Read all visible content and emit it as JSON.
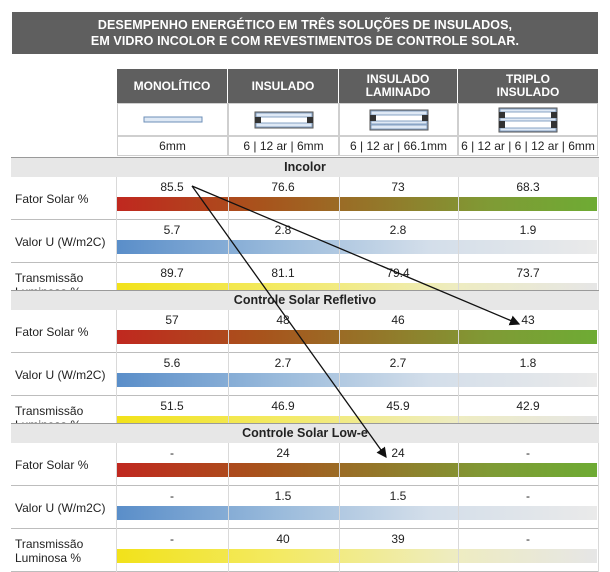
{
  "title": {
    "line1": "DESEMPENHO ENERGÉTICO EM TRÊS SOLUÇÕES DE INSULADOS,",
    "line2": "EM VIDRO INCOLOR E COM REVESTIMENTOS DE CONTROLE SOLAR."
  },
  "columns": [
    {
      "label": "MONOLÍTICO",
      "spec": "6mm",
      "icon": "single-pane-glass-icon"
    },
    {
      "label": "INSULADO",
      "spec": "6 | 12 ar | 6mm",
      "icon": "double-pane-glass-icon"
    },
    {
      "label": "INSULADO\nLAMINADO",
      "spec": "6 | 12 ar | 66.1mm",
      "icon": "laminated-double-glass-icon"
    },
    {
      "label": "TRIPLO\nINSULADO",
      "spec": "6 | 12 ar | 6 | 12 ar | 6mm",
      "icon": "triple-pane-glass-icon"
    }
  ],
  "colors": {
    "header_bg": "#5f5f5f",
    "section_bg": "#e7e7e7",
    "arrow": "#111111"
  },
  "chart_data": {
    "type": "table",
    "title": "DESEMPENHO ENERGÉTICO EM TRÊS SOLUÇÕES DE INSULADOS, EM VIDRO INCOLOR E COM REVESTIMENTOS DE CONTROLE SOLAR.",
    "columns": [
      "MONOLÍTICO",
      "INSULADO",
      "INSULADO LAMINADO",
      "TRIPLO INSULADO"
    ],
    "sections": [
      {
        "name": "Incolor",
        "rows": [
          {
            "label": "Fator Solar %",
            "values": [
              "85.5",
              "76.6",
              "73",
              "68.3"
            ],
            "gradient": "red-green"
          },
          {
            "label": "Valor U (W/m2C)",
            "values": [
              "5.7",
              "2.8",
              "2.8",
              "1.9"
            ],
            "gradient": "blue-grey"
          },
          {
            "label": "Transmissão\nLuminosa %",
            "values": [
              "89.7",
              "81.1",
              "79.4",
              "73.7"
            ],
            "gradient": "yellow-grey"
          }
        ]
      },
      {
        "name": "Controle Solar Refletivo",
        "rows": [
          {
            "label": "Fator Solar %",
            "values": [
              "57",
              "48",
              "46",
              "43"
            ],
            "gradient": "red-green"
          },
          {
            "label": "Valor U (W/m2C)",
            "values": [
              "5.6",
              "2.7",
              "2.7",
              "1.8"
            ],
            "gradient": "blue-grey"
          },
          {
            "label": "Transmissão\nLuminosa %",
            "values": [
              "51.5",
              "46.9",
              "45.9",
              "42.9"
            ],
            "gradient": "yellow-grey"
          }
        ]
      },
      {
        "name": "Controle Solar Low-e",
        "rows": [
          {
            "label": "Fator Solar %",
            "values": [
              "-",
              "24",
              "24",
              "-"
            ],
            "gradient": "red-green"
          },
          {
            "label": "Valor U (W/m2C)",
            "values": [
              "-",
              "1.5",
              "1.5",
              "-"
            ],
            "gradient": "blue-grey"
          },
          {
            "label": "Transmissão\nLuminosa %",
            "values": [
              "-",
              "40",
              "39",
              "-"
            ],
            "gradient": "yellow-grey"
          }
        ]
      }
    ],
    "arrows": [
      {
        "from": "Incolor / Fator Solar % / MONOLÍTICO",
        "to": "Controle Solar Refletivo / Fator Solar % / TRIPLO INSULADO"
      },
      {
        "from": "Incolor / Fator Solar % / MONOLÍTICO",
        "to": "Controle Solar Low-e / Fator Solar % / INSULADO LAMINADO"
      }
    ]
  }
}
